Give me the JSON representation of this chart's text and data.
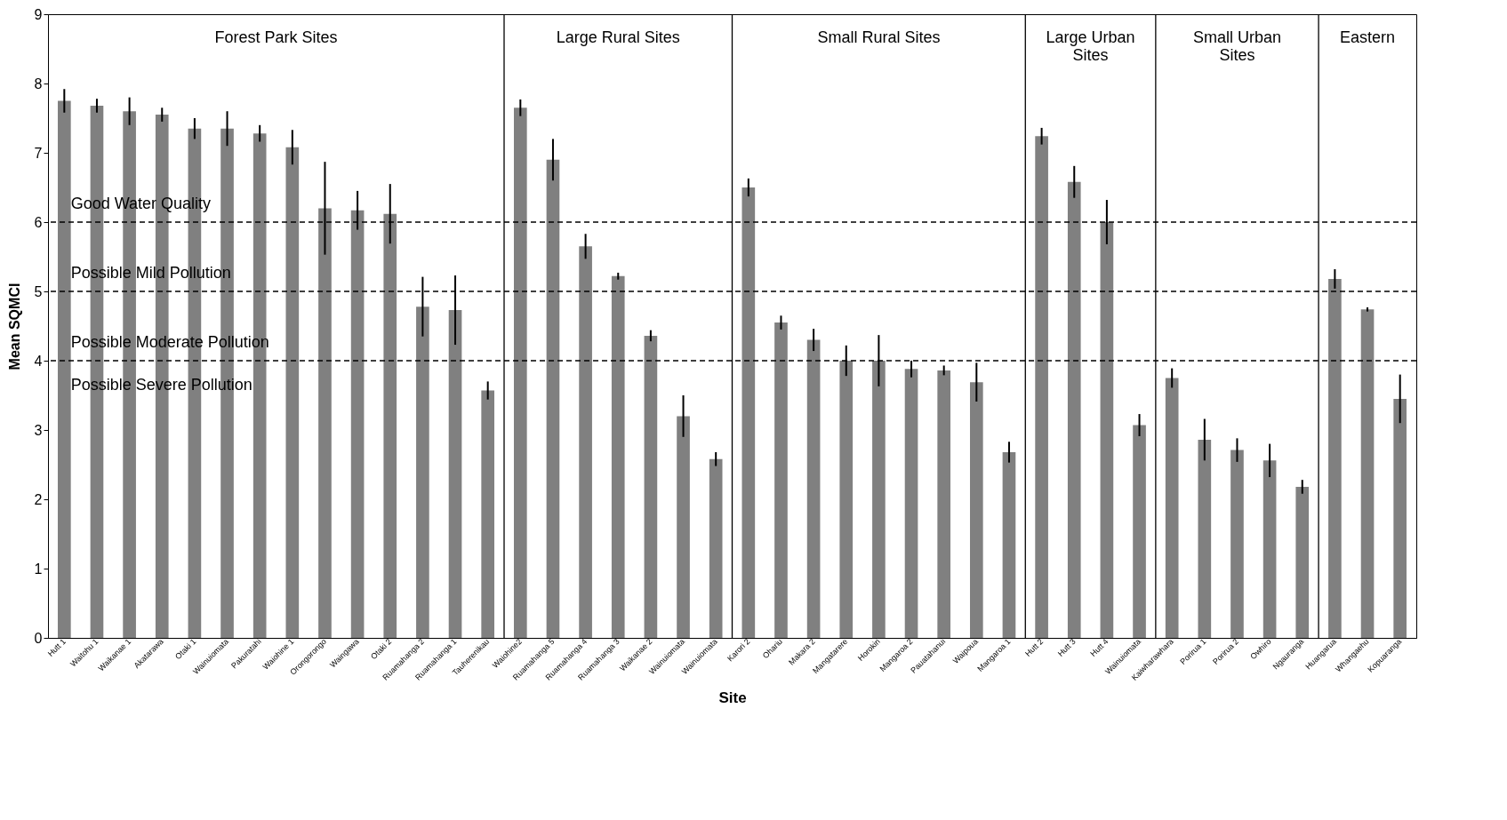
{
  "chart_data": {
    "type": "bar",
    "xlabel": "Site",
    "ylabel": "Mean SQMCI",
    "color": "#808080",
    "categories": [
      "Hutt 1",
      "Waitohu 1",
      "Waikanae 1",
      "Akatarawa",
      "Otaki 1",
      "Wainuiomata",
      "Pakuratahi",
      "Waiohine 1",
      "Orongorongo",
      "Waingawa",
      "Otaki 2",
      "Ruamahanga 2",
      "Ruamahanga 1",
      "Tauherenikau",
      "Waiohine2",
      "Ruamahanga 5",
      "Ruamahanga 4",
      "Ruamahanga 3",
      "Waikanae 2",
      "Wainuiomata",
      "Wainuiomata",
      "Karori 2",
      "Ohariu",
      "Makara 2",
      "Mangatarere",
      "Horokiri",
      "Mangaroa 2",
      "Pauatahanui",
      "Waipoua",
      "Mangaroa 1",
      "Hutt 2",
      "Hutt 3",
      "Hutt 4",
      "Wainuiomata",
      "Kaiwharawhara",
      "Porirua 1",
      "Porirua 2",
      "Owhiro",
      "Ngauranga",
      "Huangarua",
      "Whangaehu",
      "Kopuaranga"
    ],
    "values": [
      7.75,
      7.68,
      7.6,
      7.55,
      7.35,
      7.35,
      7.28,
      7.08,
      6.2,
      6.17,
      6.12,
      4.78,
      4.73,
      3.57,
      7.65,
      6.9,
      5.65,
      5.22,
      4.36,
      3.2,
      2.58,
      6.5,
      4.55,
      4.3,
      4.0,
      4.0,
      3.88,
      3.86,
      3.69,
      2.68,
      7.24,
      6.58,
      6.0,
      3.07,
      3.75,
      2.86,
      2.71,
      2.56,
      2.18,
      5.18,
      4.74,
      3.45
    ],
    "errors": [
      0.17,
      0.1,
      0.2,
      0.1,
      0.15,
      0.25,
      0.12,
      0.25,
      0.67,
      0.28,
      0.43,
      0.43,
      0.5,
      0.13,
      0.12,
      0.3,
      0.18,
      0.05,
      0.08,
      0.3,
      0.1,
      0.13,
      0.1,
      0.16,
      0.22,
      0.37,
      0.12,
      0.07,
      0.28,
      0.15,
      0.12,
      0.23,
      0.32,
      0.16,
      0.14,
      0.3,
      0.17,
      0.24,
      0.1,
      0.14,
      0.03,
      0.35
    ],
    "ylim": [
      0,
      9
    ],
    "yticks": [
      0,
      1,
      2,
      3,
      4,
      5,
      6,
      7,
      8,
      9
    ],
    "grid": false,
    "ref_lines": [
      {
        "axis": "y",
        "value": 6,
        "line_style": "dashed",
        "color": "#000000"
      },
      {
        "axis": "y",
        "value": 5,
        "line_style": "dashed",
        "color": "#000000"
      },
      {
        "axis": "y",
        "value": 4,
        "line_style": "dashed",
        "color": "#000000"
      },
      {
        "axis": "x",
        "value": "Waiohine2",
        "line_style": "solid",
        "color": "#000000"
      },
      {
        "axis": "x",
        "value": "Karori 2",
        "line_style": "solid",
        "color": "#000000"
      },
      {
        "axis": "x",
        "value": "Hutt 2",
        "line_style": "solid",
        "color": "#000000"
      },
      {
        "axis": "x",
        "value": "Kaiwharawhara",
        "line_style": "solid",
        "color": "#000000"
      },
      {
        "axis": "x",
        "value": "Huangarua",
        "line_style": "solid",
        "color": "#000000"
      }
    ],
    "annotations": [
      "Forest Park Sites",
      "Large Rural Sites",
      "Small Rural Sites",
      "Large Urban\nSites",
      "Small Urban\nSites",
      "Eastern",
      "Good Water Quality",
      "Possible Mild Pollution",
      "Possible Moderate Pollution",
      "Possible Severe Pollution"
    ]
  }
}
